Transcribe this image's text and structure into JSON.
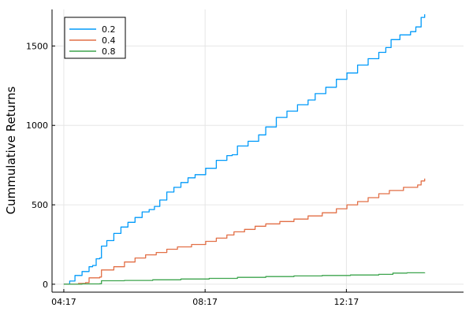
{
  "chart_data": {
    "type": "line",
    "title": "",
    "xlabel": "",
    "ylabel": "Cummulative Returns",
    "x_ticks": [
      "04:17",
      "08:17",
      "12:17"
    ],
    "x_tick_hours": [
      4.2833,
      8.2833,
      12.2833
    ],
    "xlim_hours": [
      3.95,
      15.6
    ],
    "ylim": [
      -50,
      1730
    ],
    "y_ticks": [
      0,
      500,
      1000,
      1500
    ],
    "grid": true,
    "legend_position": "top-left",
    "series": [
      {
        "name": "0.2",
        "color": "#009AFA",
        "points": [
          [
            4.283,
            0
          ],
          [
            4.45,
            20
          ],
          [
            4.6,
            55
          ],
          [
            4.8,
            80
          ],
          [
            5.0,
            110
          ],
          [
            5.1,
            118
          ],
          [
            5.2,
            160
          ],
          [
            5.3,
            165
          ],
          [
            5.35,
            240
          ],
          [
            5.5,
            275
          ],
          [
            5.7,
            320
          ],
          [
            5.9,
            360
          ],
          [
            6.1,
            390
          ],
          [
            6.3,
            420
          ],
          [
            6.5,
            455
          ],
          [
            6.7,
            470
          ],
          [
            6.85,
            490
          ],
          [
            7.0,
            530
          ],
          [
            7.2,
            580
          ],
          [
            7.4,
            610
          ],
          [
            7.6,
            640
          ],
          [
            7.8,
            670
          ],
          [
            8.0,
            690
          ],
          [
            8.3,
            730
          ],
          [
            8.6,
            780
          ],
          [
            8.9,
            810
          ],
          [
            9.05,
            815
          ],
          [
            9.2,
            870
          ],
          [
            9.5,
            900
          ],
          [
            9.8,
            940
          ],
          [
            10.0,
            990
          ],
          [
            10.3,
            1050
          ],
          [
            10.6,
            1090
          ],
          [
            10.9,
            1130
          ],
          [
            11.2,
            1160
          ],
          [
            11.4,
            1200
          ],
          [
            11.7,
            1240
          ],
          [
            12.0,
            1290
          ],
          [
            12.3,
            1330
          ],
          [
            12.6,
            1380
          ],
          [
            12.9,
            1420
          ],
          [
            13.2,
            1460
          ],
          [
            13.4,
            1490
          ],
          [
            13.55,
            1540
          ],
          [
            13.8,
            1570
          ],
          [
            14.1,
            1590
          ],
          [
            14.25,
            1620
          ],
          [
            14.4,
            1680
          ],
          [
            14.5,
            1700
          ]
        ]
      },
      {
        "name": "0.4",
        "color": "#E26F46",
        "points": [
          [
            4.283,
            0
          ],
          [
            4.7,
            5
          ],
          [
            4.9,
            10
          ],
          [
            5.0,
            40
          ],
          [
            5.3,
            45
          ],
          [
            5.35,
            90
          ],
          [
            5.7,
            110
          ],
          [
            6.0,
            140
          ],
          [
            6.3,
            165
          ],
          [
            6.6,
            185
          ],
          [
            6.9,
            200
          ],
          [
            7.2,
            220
          ],
          [
            7.5,
            235
          ],
          [
            7.9,
            250
          ],
          [
            8.3,
            270
          ],
          [
            8.6,
            290
          ],
          [
            8.9,
            310
          ],
          [
            9.1,
            330
          ],
          [
            9.4,
            345
          ],
          [
            9.7,
            365
          ],
          [
            10.0,
            380
          ],
          [
            10.4,
            395
          ],
          [
            10.8,
            410
          ],
          [
            11.2,
            430
          ],
          [
            11.6,
            450
          ],
          [
            12.0,
            475
          ],
          [
            12.3,
            500
          ],
          [
            12.6,
            520
          ],
          [
            12.9,
            545
          ],
          [
            13.2,
            570
          ],
          [
            13.5,
            590
          ],
          [
            13.9,
            610
          ],
          [
            14.3,
            625
          ],
          [
            14.4,
            650
          ],
          [
            14.5,
            665
          ]
        ]
      },
      {
        "name": "0.8",
        "color": "#3DA44D",
        "points": [
          [
            4.283,
            0
          ],
          [
            4.8,
            2
          ],
          [
            5.3,
            3
          ],
          [
            5.35,
            22
          ],
          [
            6.0,
            24
          ],
          [
            6.8,
            28
          ],
          [
            7.6,
            33
          ],
          [
            8.4,
            37
          ],
          [
            9.2,
            43
          ],
          [
            10.0,
            48
          ],
          [
            10.8,
            52
          ],
          [
            11.6,
            55
          ],
          [
            12.4,
            58
          ],
          [
            13.2,
            62
          ],
          [
            13.6,
            70
          ],
          [
            14.0,
            72
          ],
          [
            14.5,
            74
          ]
        ]
      }
    ]
  }
}
